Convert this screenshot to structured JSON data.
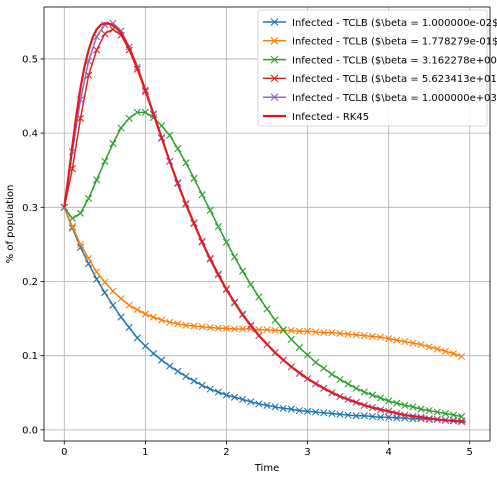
{
  "chart_data": {
    "type": "line",
    "title": "",
    "xlabel": "Time",
    "ylabel": "% of population",
    "xlim": [
      -0.25,
      5.25
    ],
    "ylim": [
      -0.015,
      0.57
    ],
    "xticks": [
      0,
      1,
      2,
      3,
      4,
      5
    ],
    "yticks": [
      0.0,
      0.1,
      0.2,
      0.3,
      0.4,
      0.5
    ],
    "xtick_labels": [
      "0",
      "1",
      "2",
      "3",
      "4",
      "5"
    ],
    "ytick_labels": [
      "0.0",
      "0.1",
      "0.2",
      "0.3",
      "0.4",
      "0.5"
    ],
    "grid": true,
    "legend_position": "top-right",
    "x": [
      0.0,
      0.1,
      0.2,
      0.3,
      0.4,
      0.5,
      0.6,
      0.7,
      0.8,
      0.9,
      1.0,
      1.1,
      1.2,
      1.3,
      1.4,
      1.5,
      1.6,
      1.7,
      1.8,
      1.9,
      2.0,
      2.1,
      2.2,
      2.3,
      2.4,
      2.5,
      2.6,
      2.7,
      2.8,
      2.9,
      3.0,
      3.1,
      3.2,
      3.3,
      3.4,
      3.5,
      3.6,
      3.7,
      3.8,
      3.9,
      4.0,
      4.1,
      4.2,
      4.3,
      4.4,
      4.5,
      4.6,
      4.7,
      4.8,
      4.9
    ],
    "series": [
      {
        "name": "Infected - TCLB  ($\\beta = 1.000000e-02$)",
        "color": "#1f77b4",
        "marker": "x",
        "values": [
          0.3,
          0.272,
          0.246,
          0.224,
          0.203,
          0.185,
          0.168,
          0.152,
          0.138,
          0.124,
          0.113,
          0.103,
          0.094,
          0.086,
          0.079,
          0.072,
          0.066,
          0.06,
          0.055,
          0.051,
          0.047,
          0.044,
          0.041,
          0.038,
          0.035,
          0.033,
          0.031,
          0.029,
          0.028,
          0.026,
          0.025,
          0.024,
          0.023,
          0.022,
          0.021,
          0.02,
          0.019,
          0.019,
          0.018,
          0.017,
          0.017,
          0.016,
          0.016,
          0.015,
          0.015,
          0.014,
          0.014,
          0.013,
          0.013,
          0.012
        ]
      },
      {
        "name": "Infected - TCLB  ($\\beta = 1.778279e-01$)",
        "color": "#ff7f0e",
        "marker": "x",
        "values": [
          0.3,
          0.274,
          0.25,
          0.231,
          0.213,
          0.199,
          0.187,
          0.177,
          0.168,
          0.162,
          0.156,
          0.152,
          0.148,
          0.145,
          0.143,
          0.141,
          0.14,
          0.139,
          0.138,
          0.137,
          0.137,
          0.136,
          0.136,
          0.136,
          0.135,
          0.135,
          0.134,
          0.134,
          0.134,
          0.133,
          0.133,
          0.132,
          0.131,
          0.131,
          0.13,
          0.129,
          0.128,
          0.127,
          0.126,
          0.125,
          0.123,
          0.121,
          0.119,
          0.117,
          0.115,
          0.112,
          0.109,
          0.106,
          0.103,
          0.099
        ]
      },
      {
        "name": "Infected - TCLB  ($\\beta = 3.162278e+00$)",
        "color": "#2ca02c",
        "marker": "x",
        "values": [
          0.3,
          0.285,
          0.292,
          0.312,
          0.337,
          0.362,
          0.386,
          0.407,
          0.42,
          0.428,
          0.428,
          0.421,
          0.41,
          0.397,
          0.379,
          0.36,
          0.339,
          0.317,
          0.296,
          0.274,
          0.253,
          0.233,
          0.214,
          0.196,
          0.179,
          0.163,
          0.148,
          0.135,
          0.122,
          0.111,
          0.101,
          0.091,
          0.083,
          0.075,
          0.068,
          0.062,
          0.056,
          0.051,
          0.047,
          0.043,
          0.039,
          0.036,
          0.033,
          0.031,
          0.028,
          0.026,
          0.024,
          0.022,
          0.02,
          0.018
        ]
      },
      {
        "name": "Infected - TCLB  ($\\beta = 5.623413e+01$)",
        "color": "#d62728",
        "marker": "x",
        "values": [
          0.3,
          0.352,
          0.42,
          0.478,
          0.512,
          0.534,
          0.54,
          0.532,
          0.512,
          0.486,
          0.456,
          0.425,
          0.393,
          0.362,
          0.333,
          0.305,
          0.279,
          0.254,
          0.231,
          0.21,
          0.19,
          0.172,
          0.156,
          0.141,
          0.127,
          0.115,
          0.104,
          0.094,
          0.085,
          0.076,
          0.069,
          0.062,
          0.056,
          0.05,
          0.045,
          0.041,
          0.037,
          0.033,
          0.03,
          0.027,
          0.025,
          0.022,
          0.02,
          0.018,
          0.017,
          0.015,
          0.014,
          0.013,
          0.012,
          0.011
        ]
      },
      {
        "name": "Infected - TCLB  ($\\beta = 1.000000e+03$)",
        "color": "#9467bd",
        "marker": "x",
        "values": [
          0.3,
          0.375,
          0.445,
          0.497,
          0.53,
          0.546,
          0.548,
          0.538,
          0.516,
          0.489,
          0.458,
          0.426,
          0.394,
          0.362,
          0.332,
          0.304,
          0.278,
          0.253,
          0.23,
          0.209,
          0.189,
          0.171,
          0.155,
          0.14,
          0.127,
          0.115,
          0.104,
          0.094,
          0.085,
          0.076,
          0.069,
          0.062,
          0.056,
          0.05,
          0.045,
          0.041,
          0.037,
          0.033,
          0.03,
          0.027,
          0.025,
          0.022,
          0.02,
          0.018,
          0.017,
          0.015,
          0.014,
          0.013,
          0.012,
          0.011
        ]
      },
      {
        "name": "Infected - RK45",
        "color": "#e31a1c",
        "marker": "none",
        "x": [
          0.0,
          0.05,
          0.1,
          0.15,
          0.2,
          0.25,
          0.3,
          0.35,
          0.4,
          0.45,
          0.5,
          0.55,
          0.6,
          0.65,
          0.7,
          0.8,
          0.9,
          1.0,
          1.1,
          1.2,
          1.3,
          1.4,
          1.5,
          1.6,
          1.7,
          1.8,
          1.9,
          2.0,
          2.2,
          2.4,
          2.6,
          2.8,
          3.0,
          3.2,
          3.4,
          3.6,
          3.8,
          4.0,
          4.2,
          4.4,
          4.6,
          4.8,
          4.95
        ],
        "values": [
          0.3,
          0.34,
          0.383,
          0.425,
          0.461,
          0.49,
          0.512,
          0.529,
          0.54,
          0.546,
          0.548,
          0.548,
          0.545,
          0.541,
          0.535,
          0.515,
          0.489,
          0.458,
          0.426,
          0.394,
          0.362,
          0.332,
          0.304,
          0.278,
          0.253,
          0.23,
          0.209,
          0.189,
          0.155,
          0.127,
          0.104,
          0.085,
          0.069,
          0.056,
          0.045,
          0.037,
          0.03,
          0.025,
          0.02,
          0.017,
          0.014,
          0.012,
          0.011
        ]
      }
    ]
  }
}
